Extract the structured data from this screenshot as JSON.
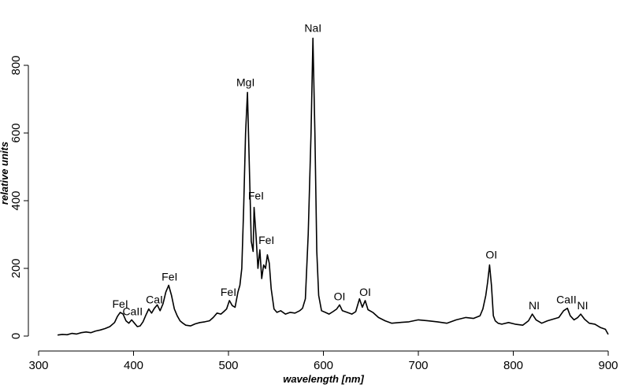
{
  "chart_data": {
    "type": "line",
    "title": "",
    "xlabel": "wavelength [nm]",
    "ylabel": "relative units",
    "xlim": [
      300,
      900
    ],
    "ylim": [
      0,
      900
    ],
    "xticks": [
      300,
      400,
      500,
      600,
      700,
      800,
      900
    ],
    "yticks": [
      0,
      200,
      400,
      600,
      800
    ],
    "grid": false,
    "series": [
      {
        "x": [
          320,
          325,
          330,
          335,
          340,
          345,
          350,
          355,
          360,
          365,
          370,
          375,
          380,
          383,
          386,
          389,
          392,
          395,
          398,
          401,
          404,
          407,
          410,
          413,
          416,
          419,
          422,
          425,
          428,
          431,
          434,
          437,
          440,
          443,
          446,
          449,
          452,
          455,
          460,
          465,
          470,
          475,
          480,
          484,
          488,
          492,
          495,
          498,
          501,
          504,
          507,
          510,
          512,
          514,
          516,
          518,
          520,
          522,
          524,
          526,
          527,
          529,
          531,
          533,
          535,
          537,
          539,
          541,
          543,
          545,
          548,
          551,
          555,
          560,
          565,
          570,
          575,
          578,
          581,
          584,
          587,
          589,
          591,
          593,
          595,
          598,
          602,
          606,
          610,
          614,
          617,
          620,
          625,
          630,
          634,
          638,
          641,
          644,
          647,
          652,
          658,
          665,
          672,
          680,
          690,
          700,
          710,
          720,
          730,
          740,
          750,
          758,
          765,
          768,
          771,
          773,
          775,
          777,
          779,
          781,
          784,
          788,
          795,
          802,
          810,
          816,
          820,
          824,
          830,
          836,
          842,
          848,
          853,
          857,
          860,
          864,
          868,
          871,
          875,
          880,
          886,
          892,
          897,
          900
        ],
        "y": [
          3,
          5,
          4,
          8,
          6,
          10,
          12,
          10,
          15,
          18,
          22,
          28,
          40,
          58,
          70,
          65,
          45,
          38,
          48,
          38,
          28,
          30,
          42,
          62,
          80,
          68,
          82,
          92,
          75,
          95,
          130,
          150,
          120,
          80,
          60,
          45,
          38,
          32,
          30,
          36,
          40,
          42,
          45,
          55,
          68,
          65,
          72,
          80,
          105,
          90,
          85,
          130,
          150,
          200,
          380,
          600,
          720,
          500,
          280,
          250,
          380,
          300,
          200,
          255,
          170,
          210,
          200,
          240,
          215,
          140,
          80,
          70,
          75,
          65,
          70,
          68,
          75,
          82,
          110,
          300,
          600,
          880,
          600,
          250,
          120,
          75,
          70,
          65,
          72,
          80,
          92,
          75,
          70,
          65,
          72,
          110,
          85,
          105,
          78,
          70,
          55,
          45,
          38,
          40,
          42,
          48,
          45,
          42,
          38,
          48,
          55,
          52,
          60,
          80,
          120,
          160,
          210,
          150,
          60,
          45,
          38,
          35,
          40,
          35,
          32,
          45,
          65,
          48,
          38,
          45,
          50,
          55,
          75,
          82,
          60,
          48,
          55,
          65,
          50,
          38,
          35,
          25,
          20,
          5
        ]
      }
    ],
    "annotations": [
      {
        "text": "FeI",
        "x": 386,
        "y": 70
      },
      {
        "text": "CaII",
        "x": 399,
        "y": 48
      },
      {
        "text": "CaI",
        "x": 422,
        "y": 82
      },
      {
        "text": "FeI",
        "x": 438,
        "y": 150
      },
      {
        "text": "FeI",
        "x": 500,
        "y": 105
      },
      {
        "text": "MgI",
        "x": 518,
        "y": 725
      },
      {
        "text": "FeI",
        "x": 529,
        "y": 390
      },
      {
        "text": "FeI",
        "x": 540,
        "y": 258
      },
      {
        "text": "NaI",
        "x": 589,
        "y": 885
      },
      {
        "text": "OI",
        "x": 617,
        "y": 92
      },
      {
        "text": "OI",
        "x": 644,
        "y": 105
      },
      {
        "text": "OI",
        "x": 777,
        "y": 215
      },
      {
        "text": "NI",
        "x": 822,
        "y": 65
      },
      {
        "text": "CaII",
        "x": 856,
        "y": 82
      },
      {
        "text": "NI",
        "x": 873,
        "y": 65
      }
    ]
  }
}
